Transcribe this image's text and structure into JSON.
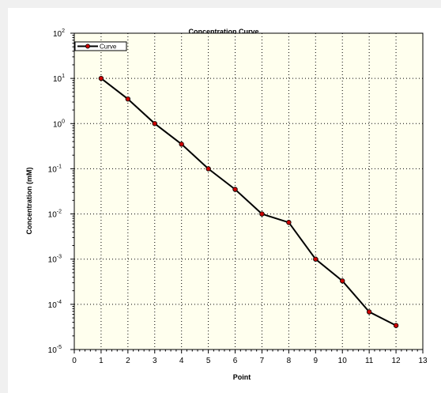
{
  "chart_data": {
    "type": "line",
    "title": "Concentration Curve",
    "xlabel": "Point",
    "ylabel": "Concentration (mM)",
    "x": [
      1,
      2,
      3,
      4,
      5,
      6,
      7,
      8,
      9,
      10,
      11,
      12
    ],
    "series": [
      {
        "name": "Curve",
        "values": [
          10,
          3.5,
          1,
          0.35,
          0.1,
          0.035,
          0.01,
          0.0065,
          0.001,
          0.00033,
          6.8e-05,
          3.4e-05
        ],
        "color": "#000000",
        "marker_color": "#cc0000"
      }
    ],
    "xlim": [
      0,
      13
    ],
    "ylim": [
      1e-05,
      100
    ],
    "yscale": "log",
    "x_ticks": [
      "0",
      "1",
      "2",
      "3",
      "4",
      "5",
      "6",
      "7",
      "8",
      "9",
      "10",
      "11",
      "12",
      "13"
    ],
    "y_ticks": [
      {
        "base": "10",
        "exp": "-5"
      },
      {
        "base": "10",
        "exp": "-4"
      },
      {
        "base": "10",
        "exp": "-3"
      },
      {
        "base": "10",
        "exp": "-2"
      },
      {
        "base": "10",
        "exp": "-1"
      },
      {
        "base": "10",
        "exp": "0"
      },
      {
        "base": "10",
        "exp": "1"
      },
      {
        "base": "10",
        "exp": "2"
      }
    ],
    "grid": true,
    "legend_position": "top-left",
    "plot_background": "#ffffee"
  }
}
